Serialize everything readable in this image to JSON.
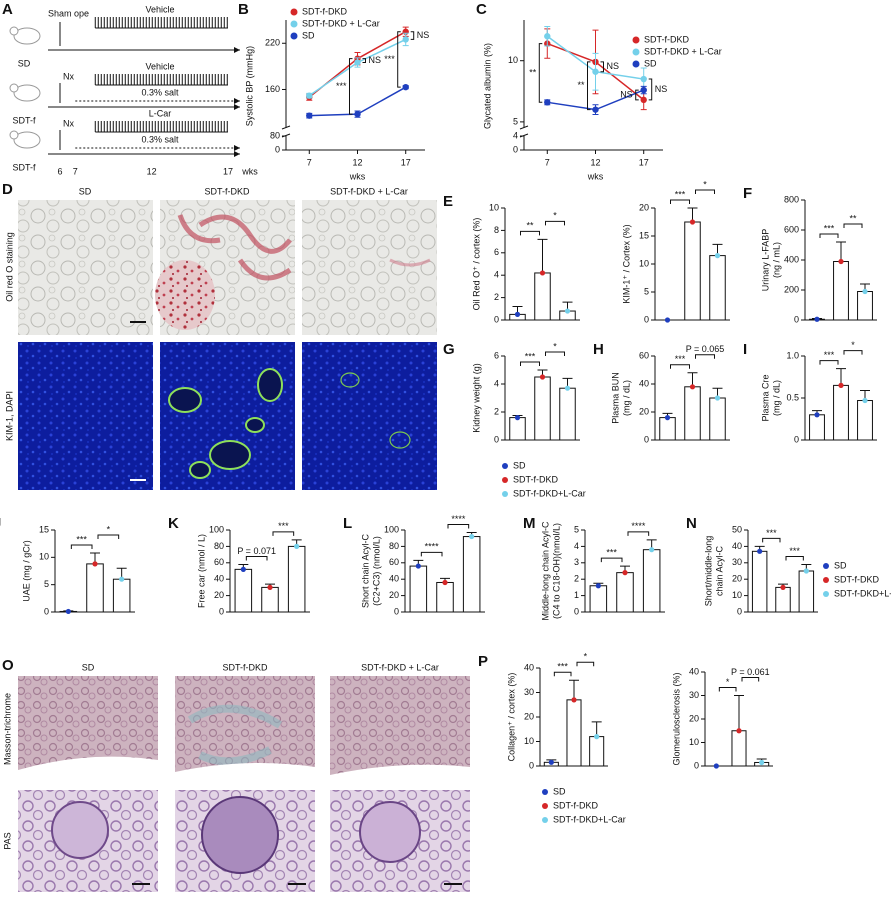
{
  "groups": {
    "names": [
      "SD",
      "SDT-f-DKD",
      "SDT-f-DKD+L-Car"
    ],
    "colors": [
      "#1f3fbf",
      "#d62728",
      "#74d0ea"
    ]
  },
  "panel_a": {
    "letter": "A",
    "rows": [
      "SD",
      "SDT-f",
      "SDT-f"
    ],
    "sham": "Sham ope",
    "nx": [
      "Nx",
      "Nx"
    ],
    "treatments": [
      "Vehicle",
      "Vehicle",
      "L-Car"
    ],
    "salt": [
      "0.3% salt",
      "0.3% salt"
    ],
    "axis_ticks": [
      6,
      7,
      12,
      17
    ],
    "axis_unit": "wks"
  },
  "line_charts": [
    {
      "letter": "B",
      "type": "line",
      "ylabel": "Systolic BP (mmHg)",
      "xlabel": "wks",
      "x": [
        7,
        12,
        17
      ],
      "xlim": [
        5,
        19
      ],
      "ylim": [
        110,
        245
      ],
      "yticks": [
        160,
        220
      ],
      "lower_ylim": [
        0,
        80
      ],
      "lower_ticks": [
        0,
        80
      ],
      "series": [
        {
          "name": "SDT-f-DKD",
          "color": "#d62728",
          "values": [
            150,
            200,
            235
          ],
          "errors": [
            4,
            8,
            6
          ]
        },
        {
          "name": "SDT-f-DKD + L-Car",
          "color": "#74d0ea",
          "values": [
            152,
            195,
            225
          ],
          "errors": [
            3,
            6,
            8
          ]
        },
        {
          "name": "SD",
          "color": "#1f3fbf",
          "values": [
            126,
            128,
            163
          ],
          "errors": [
            3,
            4,
            2
          ]
        }
      ],
      "annotations": [
        {
          "x": 12,
          "labels": [
            "***",
            "NS"
          ]
        },
        {
          "x": 17,
          "labels": [
            "***",
            "NS"
          ]
        }
      ]
    },
    {
      "letter": "C",
      "type": "line",
      "ylabel": "Glycated albumin (%)",
      "xlabel": "wks",
      "x": [
        7,
        12,
        17
      ],
      "xlim": [
        5,
        19
      ],
      "ylim": [
        4.5,
        13
      ],
      "yticks": [
        5,
        10
      ],
      "lower_ylim": [
        0,
        4
      ],
      "lower_ticks": [
        0,
        4
      ],
      "series": [
        {
          "name": "SDT-f-DKD",
          "color": "#d62728",
          "values": [
            11.4,
            9.9,
            6.8
          ],
          "errors": [
            1.2,
            2.6,
            0.8
          ]
        },
        {
          "name": "SDT-f-DKD + L-Car",
          "color": "#74d0ea",
          "values": [
            12,
            9.1,
            8.5
          ],
          "errors": [
            0.8,
            1.5,
            0.9
          ]
        },
        {
          "name": "SD",
          "color": "#1f3fbf",
          "values": [
            6.6,
            6,
            7.6
          ],
          "errors": [
            0.2,
            0.4,
            0.3
          ]
        }
      ],
      "annotations": [
        {
          "x": 7,
          "labels": [
            "**"
          ]
        },
        {
          "x": 12,
          "labels": [
            "**",
            "NS"
          ]
        },
        {
          "x": 17,
          "labels": [
            "NS",
            "NS"
          ]
        }
      ]
    }
  ],
  "micrograph_panels": [
    {
      "letter": "D",
      "columns": [
        "SD",
        "SDT-f-DKD",
        "SDT-f-DKD + L-Car"
      ],
      "rows": [
        "Oil red O staining",
        "KIM-1, DAPI"
      ]
    },
    {
      "letter": "O",
      "columns": [
        "SD",
        "SDT-f-DKD",
        "SDT-f-DKD + L-Car"
      ],
      "rows": [
        "Masson-trichrome",
        "PAS"
      ]
    }
  ],
  "bar_panels": [
    {
      "letter": "E",
      "type": "bar",
      "ylabel": [
        "Oil Red O⁺ / cortex (%)"
      ],
      "ylim": [
        0,
        10
      ],
      "yticks": [
        0,
        2,
        4,
        6,
        8,
        10
      ],
      "values": [
        0.5,
        4.2,
        0.8
      ],
      "errors": [
        0.7,
        3,
        0.8
      ],
      "significance": [
        "**",
        "*"
      ]
    },
    {
      "type": "bar",
      "ylabel": [
        "KIM-1⁺ / Cortex (%)"
      ],
      "ylim": [
        0,
        20
      ],
      "yticks": [
        0,
        5,
        10,
        15,
        20
      ],
      "values": [
        0,
        17.5,
        11.5
      ],
      "errors": [
        0,
        2.5,
        2
      ],
      "significance": [
        "***",
        "*"
      ]
    },
    {
      "letter": "F",
      "type": "bar",
      "ylabel": [
        "Urinary L-FABP",
        "(ng / mL)"
      ],
      "ylim": [
        0,
        800
      ],
      "yticks": [
        0,
        200,
        400,
        600,
        800
      ],
      "values": [
        5,
        390,
        190
      ],
      "errors": [
        5,
        130,
        50
      ],
      "significance": [
        "***",
        "**"
      ]
    },
    {
      "letter": "G",
      "type": "bar",
      "ylabel": [
        "Kidney weight (g)"
      ],
      "ylim": [
        0,
        6
      ],
      "yticks": [
        0,
        2,
        4,
        6
      ],
      "values": [
        1.6,
        4.5,
        3.7
      ],
      "errors": [
        0.15,
        0.5,
        0.7
      ],
      "significance": [
        "***",
        "*"
      ]
    },
    {
      "letter": "H",
      "type": "bar",
      "ylabel": [
        "Plasma BUN",
        "(mg / dL)"
      ],
      "ylim": [
        0,
        60
      ],
      "yticks": [
        0,
        20,
        40,
        60
      ],
      "values": [
        16,
        38,
        30
      ],
      "errors": [
        3,
        10,
        7
      ],
      "significance": [
        "***",
        "P = 0.065"
      ]
    },
    {
      "letter": "I",
      "type": "bar",
      "ylabel": [
        "Plasma Cre",
        "(mg / dL)"
      ],
      "ylim": [
        0,
        1
      ],
      "yticks": [
        0,
        0.5,
        {
          "value": 1,
          "label": "1.0"
        }
      ],
      "values": [
        0.3,
        0.65,
        0.47
      ],
      "errors": [
        0.05,
        0.2,
        0.12
      ],
      "significance": [
        "***",
        "*"
      ]
    },
    {
      "letter": "J",
      "type": "bar",
      "ylabel": [
        "UAE (mg / gCr)"
      ],
      "ylim": [
        0,
        15
      ],
      "yticks": [
        0,
        5,
        10,
        15
      ],
      "values": [
        0.1,
        8.8,
        6
      ],
      "errors": [
        0.1,
        2,
        2
      ],
      "significance": [
        "***",
        "*"
      ]
    },
    {
      "letter": "K",
      "type": "bar",
      "ylabel": [
        "Free car (nmol / L)"
      ],
      "ylim": [
        0,
        100
      ],
      "yticks": [
        0,
        20,
        40,
        60,
        80,
        100
      ],
      "values": [
        52,
        30,
        80
      ],
      "errors": [
        6,
        4,
        8
      ],
      "significance": [
        "P = 0.071",
        "***"
      ]
    },
    {
      "letter": "L",
      "type": "bar",
      "ylabel": [
        "Short chain Acyl-C",
        "(C2+C3) (nmol/L)"
      ],
      "ylim": [
        0,
        100
      ],
      "yticks": [
        0,
        20,
        40,
        60,
        80,
        100
      ],
      "values": [
        56,
        36,
        92
      ],
      "errors": [
        7,
        5,
        5
      ],
      "significance": [
        "****",
        "****"
      ]
    },
    {
      "letter": "M",
      "type": "bar",
      "ylabel": [
        "Middle-long chain Acyl-C",
        "(C4 to C18-OH)(nmol/L)"
      ],
      "ylim": [
        0,
        5
      ],
      "yticks": [
        0,
        1,
        2,
        3,
        4,
        5
      ],
      "values": [
        1.6,
        2.4,
        3.8
      ],
      "errors": [
        0.15,
        0.4,
        0.6
      ],
      "significance": [
        "***",
        "****"
      ]
    },
    {
      "letter": "N",
      "type": "bar",
      "ylabel": [
        "Short/middle-long",
        "chain Acyl-C"
      ],
      "ylim": [
        0,
        50
      ],
      "yticks": [
        0,
        10,
        20,
        30,
        40,
        50
      ],
      "values": [
        37,
        15,
        25
      ],
      "errors": [
        3,
        2,
        4
      ],
      "significance": [
        "***",
        "***"
      ]
    },
    {
      "letter": "P",
      "type": "bar",
      "ylabel": [
        "Collagen⁺ / cortex (%)"
      ],
      "ylim": [
        0,
        40
      ],
      "yticks": [
        0,
        10,
        20,
        30,
        40
      ],
      "values": [
        1.5,
        27,
        12
      ],
      "errors": [
        1,
        8,
        6
      ],
      "significance": [
        "***",
        "*"
      ]
    },
    {
      "type": "bar",
      "ylabel": [
        "Glomerulosclerosis (%)"
      ],
      "ylim": [
        0,
        40
      ],
      "yticks": [
        0,
        10,
        20,
        30,
        40
      ],
      "values": [
        0,
        15,
        1.5
      ],
      "errors": [
        0,
        15,
        1.5
      ],
      "significance": [
        "*",
        "P = 0.061"
      ]
    }
  ]
}
